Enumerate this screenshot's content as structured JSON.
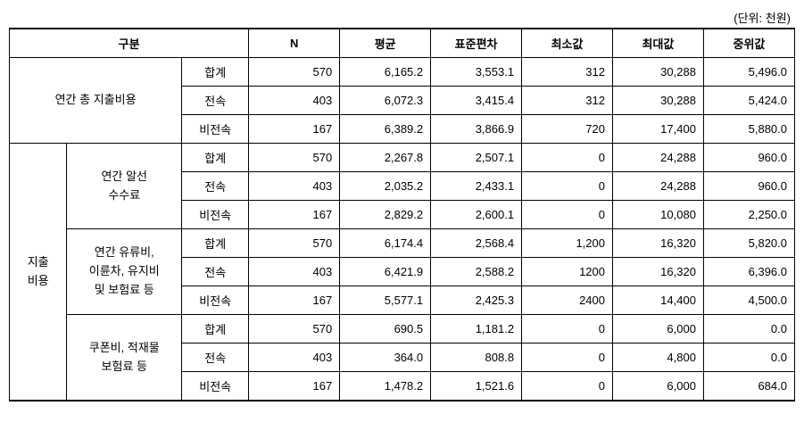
{
  "unit_label": "(단위: 천원)",
  "headers": {
    "category": "구분",
    "n": "N",
    "mean": "평균",
    "stddev": "표준편차",
    "min": "최소값",
    "max": "최대값",
    "median": "중위값"
  },
  "sections": {
    "total_expense": {
      "label": "연간 총 지출비용",
      "rows": [
        {
          "type": "합계",
          "n": "570",
          "mean": "6,165.2",
          "stddev": "3,553.1",
          "min": "312",
          "max": "30,288",
          "median": "5,496.0"
        },
        {
          "type": "전속",
          "n": "403",
          "mean": "6,072.3",
          "stddev": "3,415.4",
          "min": "312",
          "max": "30,288",
          "median": "5,424.0"
        },
        {
          "type": "비전속",
          "n": "167",
          "mean": "6,389.2",
          "stddev": "3,866.9",
          "min": "720",
          "max": "17,400",
          "median": "5,880.0"
        }
      ]
    },
    "expense_detail": {
      "category_label": "지출\n비용",
      "subsections": [
        {
          "label": "연간 알선\n수수료",
          "rows": [
            {
              "type": "합계",
              "n": "570",
              "mean": "2,267.8",
              "stddev": "2,507.1",
              "min": "0",
              "max": "24,288",
              "median": "960.0"
            },
            {
              "type": "전속",
              "n": "403",
              "mean": "2,035.2",
              "stddev": "2,433.1",
              "min": "0",
              "max": "24,288",
              "median": "960.0"
            },
            {
              "type": "비전속",
              "n": "167",
              "mean": "2,829.2",
              "stddev": "2,600.1",
              "min": "0",
              "max": "10,080",
              "median": "2,250.0"
            }
          ]
        },
        {
          "label": "연간 유류비,\n이륜차, 유지비\n및 보험료 등",
          "rows": [
            {
              "type": "합계",
              "n": "570",
              "mean": "6,174.4",
              "stddev": "2,568.4",
              "min": "1,200",
              "max": "16,320",
              "median": "5,820.0"
            },
            {
              "type": "전속",
              "n": "403",
              "mean": "6,421.9",
              "stddev": "2,588.2",
              "min": "1200",
              "max": "16,320",
              "median": "6,396.0"
            },
            {
              "type": "비전속",
              "n": "167",
              "mean": "5,577.1",
              "stddev": "2,425.3",
              "min": "2400",
              "max": "14,400",
              "median": "4,500.0"
            }
          ]
        },
        {
          "label": "쿠폰비, 적재물\n보험료 등",
          "rows": [
            {
              "type": "합계",
              "n": "570",
              "mean": "690.5",
              "stddev": "1,181.2",
              "min": "0",
              "max": "6,000",
              "median": "0.0"
            },
            {
              "type": "전속",
              "n": "403",
              "mean": "364.0",
              "stddev": "808.8",
              "min": "0",
              "max": "4,800",
              "median": "0.0"
            },
            {
              "type": "비전속",
              "n": "167",
              "mean": "1,478.2",
              "stddev": "1,521.6",
              "min": "0",
              "max": "6,000",
              "median": "684.0"
            }
          ]
        }
      ]
    }
  }
}
